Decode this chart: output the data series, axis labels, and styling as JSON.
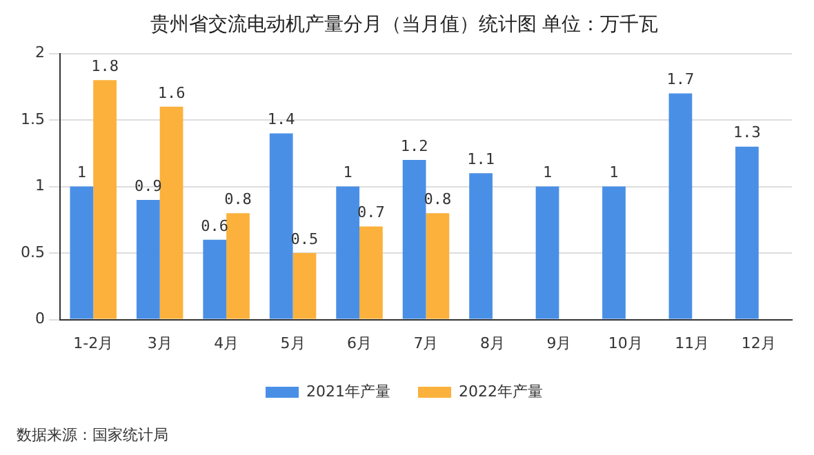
{
  "chart_data": {
    "type": "bar",
    "title": "贵州省交流电动机产量分月（当月值）统计图 单位：万千瓦",
    "categories": [
      "1-2月",
      "3月",
      "4月",
      "5月",
      "6月",
      "7月",
      "8月",
      "9月",
      "10月",
      "11月",
      "12月"
    ],
    "series": [
      {
        "name": "2021年产量",
        "color": "#4a8fe6",
        "values": [
          1,
          0.9,
          0.6,
          1.4,
          1,
          1.2,
          1.1,
          1,
          1,
          1.7,
          1.3
        ]
      },
      {
        "name": "2022年产量",
        "color": "#fbb13c",
        "values": [
          1.8,
          1.6,
          0.8,
          0.5,
          0.7,
          0.8,
          null,
          null,
          null,
          null,
          null
        ]
      }
    ],
    "ylim": [
      0,
      2
    ],
    "yticks": [
      0,
      0.5,
      1,
      1.5,
      2
    ],
    "grid": "y",
    "legend": "bottom",
    "data_labels": true,
    "annotations": [
      "数据来源：国家统计局"
    ]
  }
}
